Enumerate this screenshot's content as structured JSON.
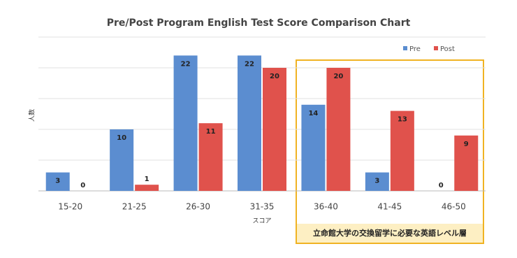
{
  "chart_data": {
    "type": "bar",
    "title": "Pre/Post Program English Test Score Comparison Chart",
    "categories": [
      "15-20",
      "21-25",
      "26-30",
      "31-35",
      "36-40",
      "41-45",
      "46-50"
    ],
    "series": [
      {
        "name": "Pre",
        "color": "#5b8dd0",
        "values": [
          3,
          10,
          22,
          22,
          14,
          3,
          0
        ]
      },
      {
        "name": "Post",
        "color": "#e0524c",
        "values": [
          0,
          1,
          11,
          20,
          20,
          13,
          9
        ]
      }
    ],
    "x_label": "スコア",
    "y_label": "人数",
    "ylim": [
      0,
      25
    ],
    "yticks": [
      0,
      5,
      10,
      15,
      20,
      25
    ],
    "grid": true,
    "annotation": "立命館大学の交換留学に必要な英語レベル層"
  }
}
